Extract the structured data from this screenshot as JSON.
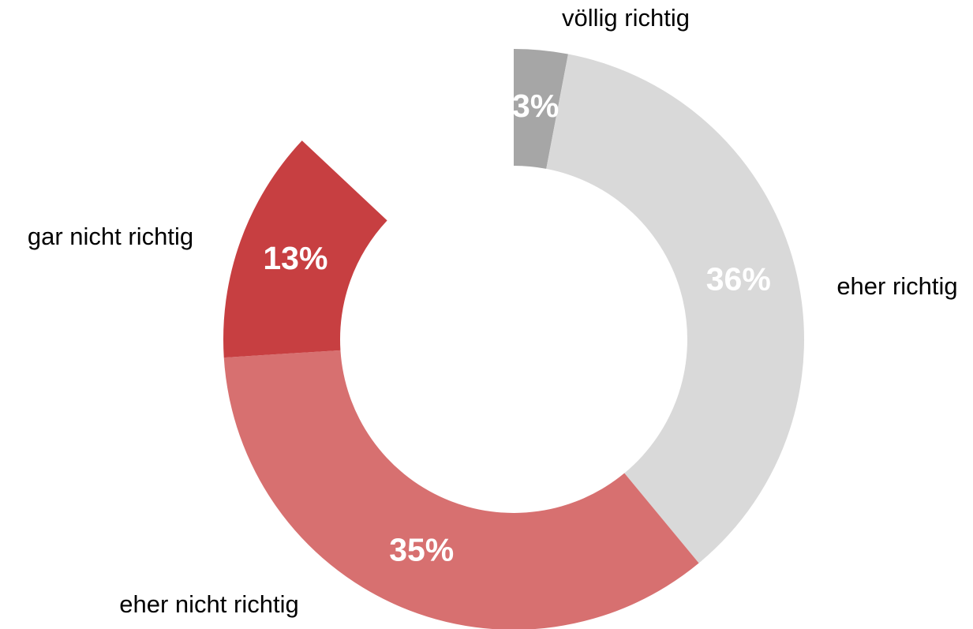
{
  "chart_data": {
    "type": "donut",
    "categories": [
      "völlig richtig",
      "eher richtig",
      "eher nicht richtig",
      "gar nicht richtig"
    ],
    "values": [
      3,
      36,
      35,
      13
    ],
    "value_labels": [
      "3%",
      "36%",
      "35%",
      "13%"
    ],
    "colors": [
      "#a6a6a6",
      "#d9d9d9",
      "#d77070",
      "#c73f41"
    ]
  }
}
